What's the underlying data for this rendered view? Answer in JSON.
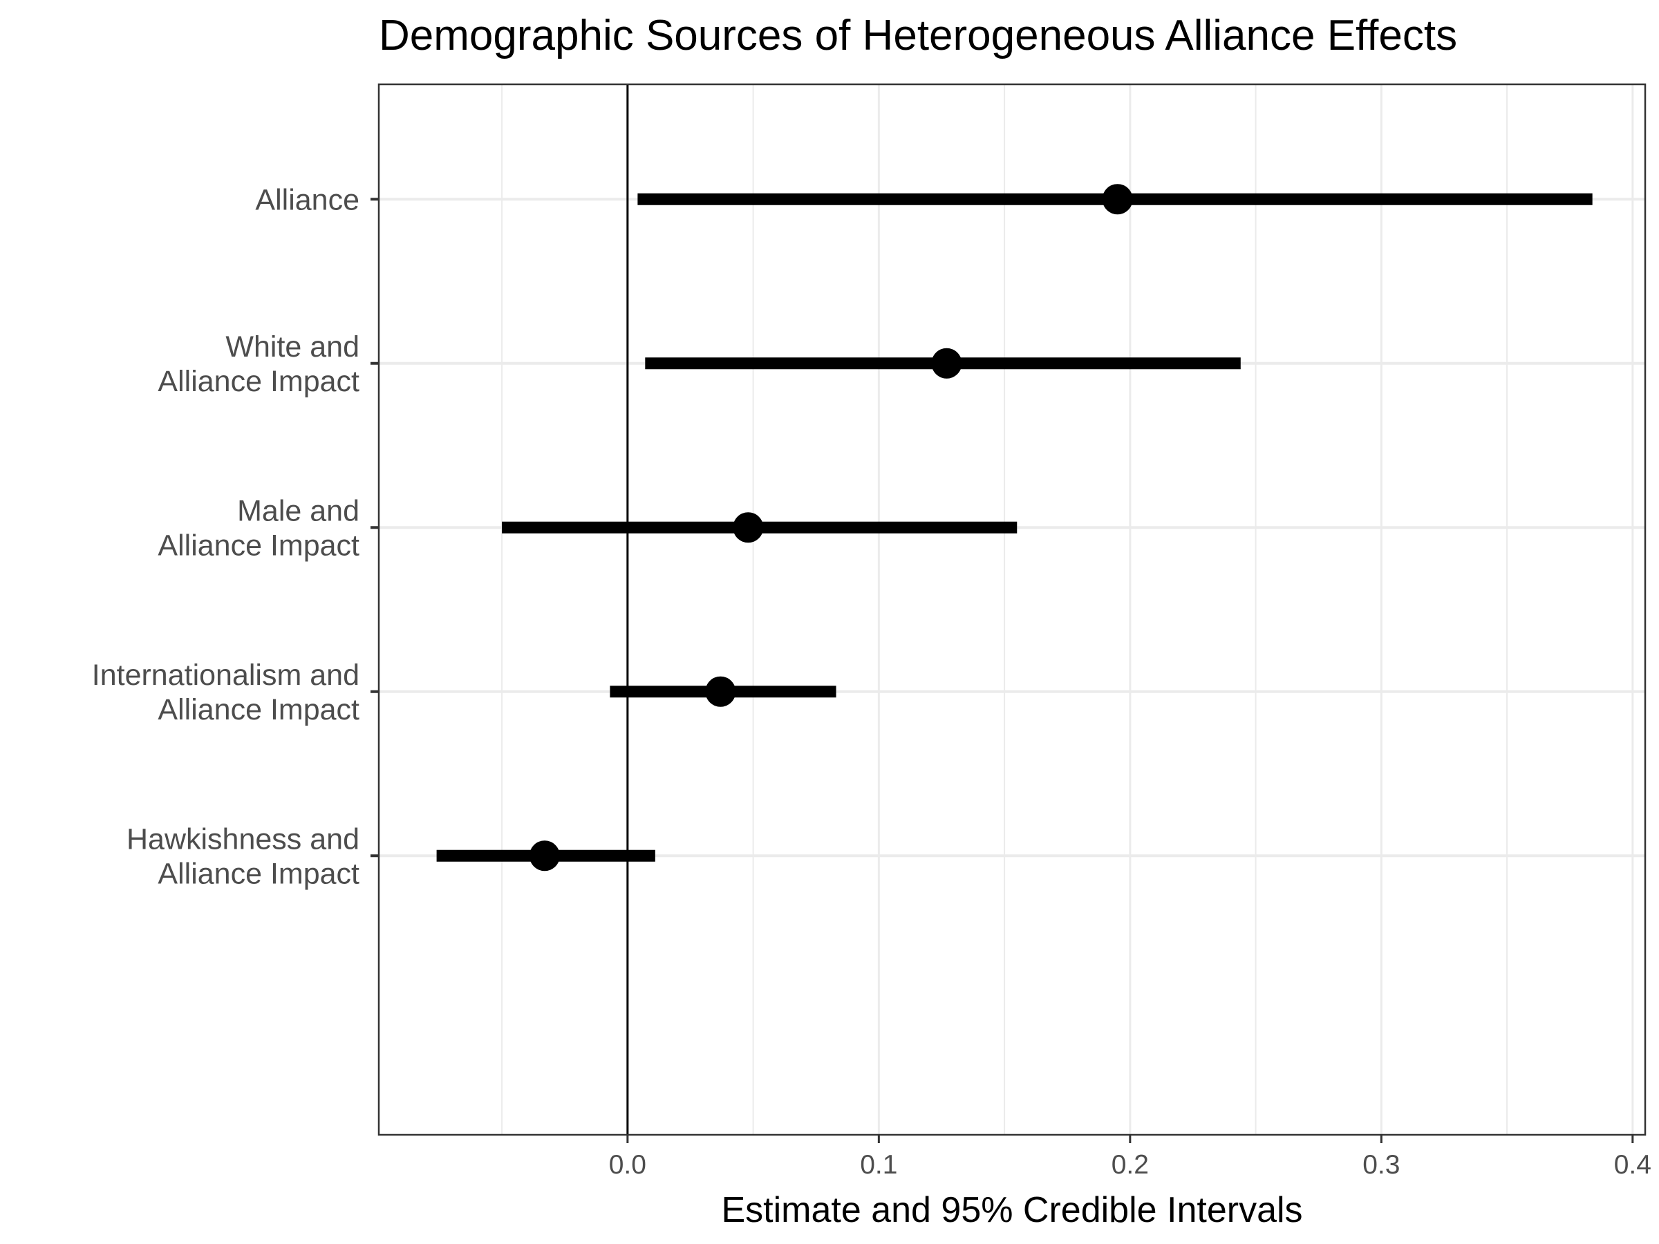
{
  "chart_data": {
    "type": "point-range",
    "title": "Demographic Sources of Heterogeneous Alliance Effects",
    "xlabel": "Estimate and 95% Credible Intervals",
    "ylabel": "",
    "xlim": [
      -0.099,
      0.405
    ],
    "x_ticks": [
      0.0,
      0.1,
      0.2,
      0.3,
      0.4
    ],
    "x_tick_labels": [
      "0.0",
      "0.1",
      "0.2",
      "0.3",
      "0.4"
    ],
    "reference_line": 0,
    "grid": true,
    "categories": [
      {
        "label": [
          "Alliance"
        ],
        "estimate": 0.195,
        "lower": 0.004,
        "upper": 0.384
      },
      {
        "label": [
          "White and",
          "Alliance Impact"
        ],
        "estimate": 0.127,
        "lower": 0.007,
        "upper": 0.244
      },
      {
        "label": [
          "Male and",
          "Alliance Impact"
        ],
        "estimate": 0.048,
        "lower": -0.05,
        "upper": 0.155
      },
      {
        "label": [
          "Internationalism and",
          "Alliance Impact"
        ],
        "estimate": 0.037,
        "lower": -0.007,
        "upper": 0.083
      },
      {
        "label": [
          "Hawkishness and",
          "Alliance Impact"
        ],
        "estimate": -0.033,
        "lower": -0.076,
        "upper": 0.011
      }
    ],
    "colors": {
      "marks": "#000000",
      "grid": "#ebebeb",
      "panel_border": "#333333",
      "axis_text": "#4d4d4d"
    }
  }
}
